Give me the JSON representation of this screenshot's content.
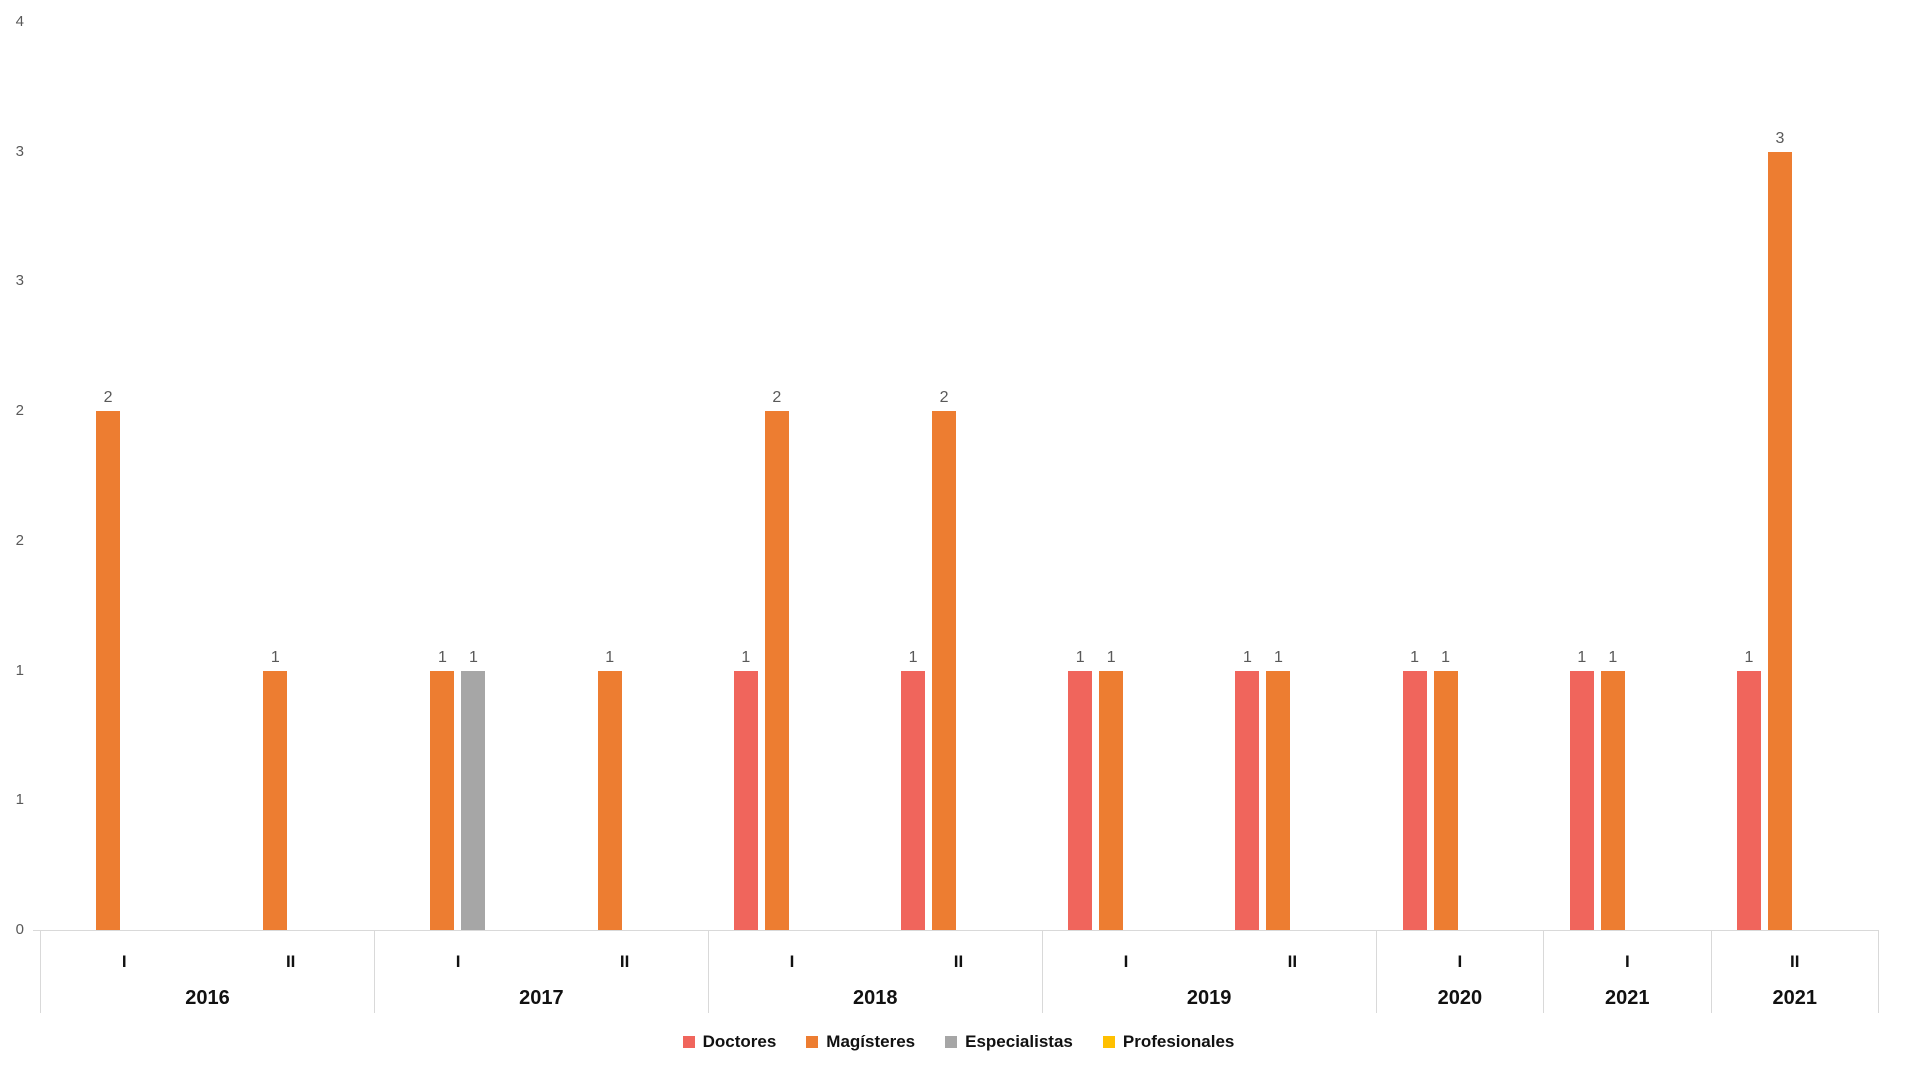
{
  "chart_data": {
    "type": "bar",
    "title": "",
    "x_axis": {
      "semester_labels": [
        "I",
        "II",
        "I",
        "II",
        "I",
        "II",
        "I",
        "II",
        "I",
        "I",
        "II"
      ],
      "year_groups": [
        {
          "label": "2016",
          "span": 2
        },
        {
          "label": "2017",
          "span": 2
        },
        {
          "label": "2018",
          "span": 2
        },
        {
          "label": "2019",
          "span": 2
        },
        {
          "label": "2020",
          "span": 1
        },
        {
          "label": "2021",
          "span": 1
        },
        {
          "label": "2021",
          "span": 1
        }
      ]
    },
    "y_axis": {
      "min": 0,
      "max": 3.5,
      "step": 0.5,
      "tick_labels_bottom_to_top": [
        "0",
        "1",
        "1",
        "2",
        "2",
        "3",
        "3",
        "4"
      ]
    },
    "series": [
      {
        "name": "Doctores",
        "color": "#F0655C",
        "values": [
          0,
          0,
          0,
          0,
          1,
          1,
          1,
          1,
          1,
          1,
          1
        ]
      },
      {
        "name": "Magísteres",
        "color": "#ED7D31",
        "values": [
          2,
          1,
          1,
          1,
          2,
          2,
          1,
          1,
          1,
          1,
          3
        ]
      },
      {
        "name": "Especialistas",
        "color": "#A6A6A6",
        "values": [
          0,
          0,
          1,
          0,
          0,
          0,
          0,
          0,
          0,
          0,
          0
        ]
      },
      {
        "name": "Profesionales",
        "color": "#FFC000",
        "values": [
          0,
          0,
          0,
          0,
          0,
          0,
          0,
          0,
          0,
          0,
          0
        ]
      }
    ],
    "grid": false,
    "data_labels": true,
    "legend_position": "bottom"
  },
  "colors": {
    "background": "#FFFFFF",
    "axis_line": "#D9D9D9",
    "tick_label": "#595959",
    "data_label": "#595959",
    "category_label": "#111111"
  }
}
